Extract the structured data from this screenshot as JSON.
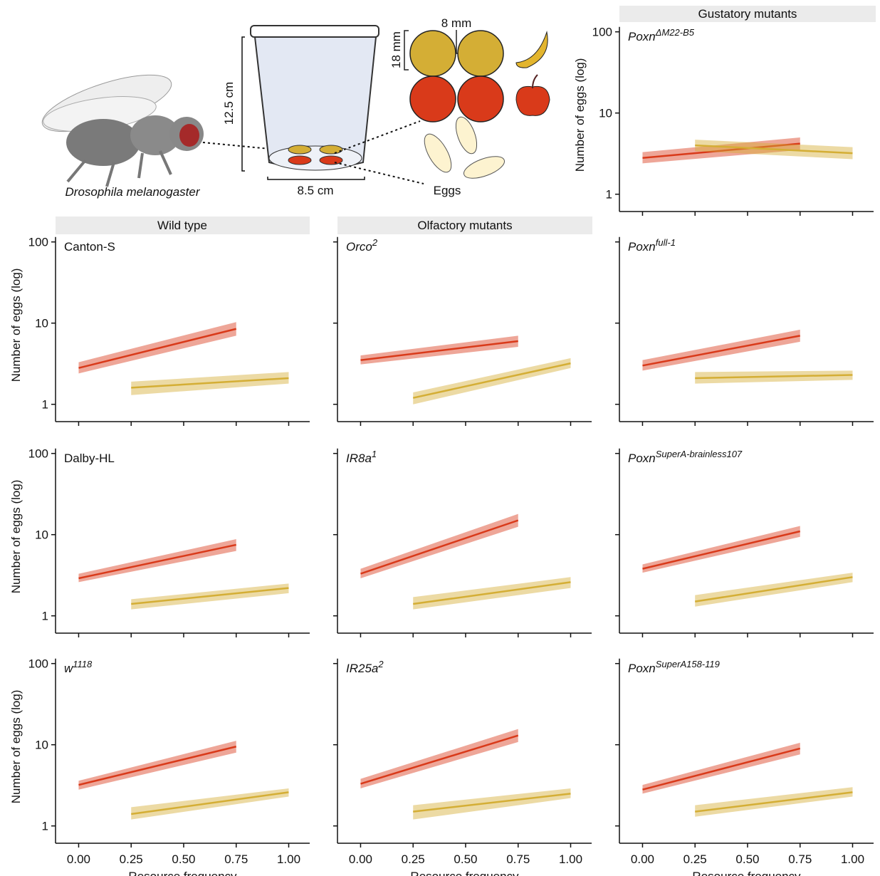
{
  "illustration": {
    "species": "Drosophila melanogaster",
    "height": "12.5 cm",
    "width": "8.5 cm",
    "gap": "8 mm",
    "diameter": "18 mm",
    "eggs": "Eggs"
  },
  "strips": [
    "Gustatory mutants",
    "Wild type",
    "Olfactory mutants"
  ],
  "chart_data": [
    {
      "type": "line",
      "title": "Poxn",
      "title_sup": "ΔM22-B5",
      "italic": true,
      "y_label": "Number of eggs (log)",
      "ytick_labels": true,
      "xtick_labels": false,
      "log_y": true,
      "xlim": [
        -0.11,
        1.1
      ],
      "ylim": [
        0.78,
        115
      ],
      "yticks": [
        1,
        10,
        100
      ],
      "xticks": [
        {
          "value": 0,
          "label": "0.00"
        },
        {
          "value": 0.25,
          "label": "0.25"
        },
        {
          "value": 0.5,
          "label": "0.50"
        },
        {
          "value": 0.75,
          "label": "0.75"
        },
        {
          "value": 1,
          "label": "1.00"
        }
      ],
      "series": [
        {
          "color": "#d93a1a",
          "x": [
            0,
            0.75
          ],
          "values": [
            2.8,
            4.2
          ],
          "lower": [
            2.4,
            3.5
          ],
          "upper": [
            3.3,
            5.0
          ]
        },
        {
          "color": "#d4ae35",
          "x": [
            0.25,
            1
          ],
          "values": [
            4.0,
            3.2
          ],
          "lower": [
            3.4,
            2.7
          ],
          "upper": [
            4.7,
            3.8
          ]
        }
      ]
    },
    {
      "type": "line",
      "title": "Canton-S",
      "italic": false,
      "y_label": "Number of eggs (log)",
      "ytick_labels": true,
      "xtick_labels": false,
      "log_y": true,
      "xlim": [
        -0.11,
        1.1
      ],
      "ylim": [
        0.78,
        115
      ],
      "yticks": [
        1,
        10,
        100
      ],
      "xticks": [
        {
          "value": 0,
          "label": "0.00"
        },
        {
          "value": 0.25,
          "label": "0.25"
        },
        {
          "value": 0.5,
          "label": "0.50"
        },
        {
          "value": 0.75,
          "label": "0.75"
        },
        {
          "value": 1,
          "label": "1.00"
        }
      ],
      "series": [
        {
          "color": "#d93a1a",
          "x": [
            0,
            0.75
          ],
          "values": [
            2.8,
            8.5
          ],
          "lower": [
            2.4,
            7.0
          ],
          "upper": [
            3.3,
            10.3
          ]
        },
        {
          "color": "#d4ae35",
          "x": [
            0.25,
            1
          ],
          "values": [
            1.6,
            2.1
          ],
          "lower": [
            1.3,
            1.8
          ],
          "upper": [
            1.9,
            2.5
          ]
        }
      ]
    },
    {
      "type": "line",
      "title": "Orco",
      "title_sup": "2",
      "italic": true,
      "ytick_labels": false,
      "xtick_labels": false,
      "log_y": true,
      "xlim": [
        -0.11,
        1.1
      ],
      "ylim": [
        0.78,
        115
      ],
      "yticks": [
        1,
        10,
        100
      ],
      "xticks": [
        {
          "value": 0,
          "label": "0.00"
        },
        {
          "value": 0.25,
          "label": "0.25"
        },
        {
          "value": 0.5,
          "label": "0.50"
        },
        {
          "value": 0.75,
          "label": "0.75"
        },
        {
          "value": 1,
          "label": "1.00"
        }
      ],
      "series": [
        {
          "color": "#d93a1a",
          "x": [
            0,
            0.75
          ],
          "values": [
            3.5,
            6.0
          ],
          "lower": [
            3.1,
            5.1
          ],
          "upper": [
            4.0,
            7.0
          ]
        },
        {
          "color": "#d4ae35",
          "x": [
            0.25,
            1
          ],
          "values": [
            1.2,
            3.2
          ],
          "lower": [
            1.0,
            2.8
          ],
          "upper": [
            1.4,
            3.7
          ]
        }
      ]
    },
    {
      "type": "line",
      "title": "Poxn",
      "title_sup": "full-1",
      "italic": true,
      "ytick_labels": false,
      "xtick_labels": false,
      "log_y": true,
      "xlim": [
        -0.11,
        1.1
      ],
      "ylim": [
        0.78,
        115
      ],
      "yticks": [
        1,
        10,
        100
      ],
      "xticks": [
        {
          "value": 0,
          "label": "0.00"
        },
        {
          "value": 0.25,
          "label": "0.25"
        },
        {
          "value": 0.5,
          "label": "0.50"
        },
        {
          "value": 0.75,
          "label": "0.75"
        },
        {
          "value": 1,
          "label": "1.00"
        }
      ],
      "series": [
        {
          "color": "#d93a1a",
          "x": [
            0,
            0.75
          ],
          "values": [
            3.0,
            7.0
          ],
          "lower": [
            2.6,
            5.9
          ],
          "upper": [
            3.5,
            8.3
          ]
        },
        {
          "color": "#d4ae35",
          "x": [
            0.25,
            1
          ],
          "values": [
            2.1,
            2.3
          ],
          "lower": [
            1.8,
            2.0
          ],
          "upper": [
            2.5,
            2.6
          ]
        }
      ]
    },
    {
      "type": "line",
      "title": "Dalby-HL",
      "italic": false,
      "y_label": "Number of eggs (log)",
      "ytick_labels": true,
      "xtick_labels": false,
      "log_y": true,
      "xlim": [
        -0.11,
        1.1
      ],
      "ylim": [
        0.78,
        115
      ],
      "yticks": [
        1,
        10,
        100
      ],
      "xticks": [
        {
          "value": 0,
          "label": "0.00"
        },
        {
          "value": 0.25,
          "label": "0.25"
        },
        {
          "value": 0.5,
          "label": "0.50"
        },
        {
          "value": 0.75,
          "label": "0.75"
        },
        {
          "value": 1,
          "label": "1.00"
        }
      ],
      "series": [
        {
          "color": "#d93a1a",
          "x": [
            0,
            0.75
          ],
          "values": [
            2.9,
            7.5
          ],
          "lower": [
            2.6,
            6.3
          ],
          "upper": [
            3.3,
            8.8
          ]
        },
        {
          "color": "#d4ae35",
          "x": [
            0.25,
            1
          ],
          "values": [
            1.4,
            2.2
          ],
          "lower": [
            1.2,
            1.9
          ],
          "upper": [
            1.6,
            2.5
          ]
        }
      ]
    },
    {
      "type": "line",
      "title": "IR8a",
      "title_sup": "1",
      "italic": true,
      "ytick_labels": false,
      "xtick_labels": false,
      "log_y": true,
      "xlim": [
        -0.11,
        1.1
      ],
      "ylim": [
        0.78,
        115
      ],
      "yticks": [
        1,
        10,
        100
      ],
      "xticks": [
        {
          "value": 0,
          "label": "0.00"
        },
        {
          "value": 0.25,
          "label": "0.25"
        },
        {
          "value": 0.5,
          "label": "0.50"
        },
        {
          "value": 0.75,
          "label": "0.75"
        },
        {
          "value": 1,
          "label": "1.00"
        }
      ],
      "series": [
        {
          "color": "#d93a1a",
          "x": [
            0,
            0.75
          ],
          "values": [
            3.3,
            15
          ],
          "lower": [
            2.9,
            12.5
          ],
          "upper": [
            3.8,
            18
          ]
        },
        {
          "color": "#d4ae35",
          "x": [
            0.25,
            1
          ],
          "values": [
            1.4,
            2.6
          ],
          "lower": [
            1.2,
            2.2
          ],
          "upper": [
            1.7,
            3.0
          ]
        }
      ]
    },
    {
      "type": "line",
      "title": "Poxn",
      "title_sup": "SuperA-brainless107",
      "italic": true,
      "ytick_labels": false,
      "xtick_labels": false,
      "log_y": true,
      "xlim": [
        -0.11,
        1.1
      ],
      "ylim": [
        0.78,
        115
      ],
      "yticks": [
        1,
        10,
        100
      ],
      "xticks": [
        {
          "value": 0,
          "label": "0.00"
        },
        {
          "value": 0.25,
          "label": "0.25"
        },
        {
          "value": 0.5,
          "label": "0.50"
        },
        {
          "value": 0.75,
          "label": "0.75"
        },
        {
          "value": 1,
          "label": "1.00"
        }
      ],
      "series": [
        {
          "color": "#d93a1a",
          "x": [
            0,
            0.75
          ],
          "values": [
            3.8,
            11
          ],
          "lower": [
            3.4,
            9.4
          ],
          "upper": [
            4.3,
            12.8
          ]
        },
        {
          "color": "#d4ae35",
          "x": [
            0.25,
            1
          ],
          "values": [
            1.5,
            3.0
          ],
          "lower": [
            1.3,
            2.6
          ],
          "upper": [
            1.8,
            3.4
          ]
        }
      ]
    },
    {
      "type": "line",
      "title": "w",
      "title_sup": "1118",
      "italic": true,
      "y_label": "Number of eggs (log)",
      "x_label": "Resource frequency",
      "ytick_labels": true,
      "xtick_labels": true,
      "log_y": true,
      "xlim": [
        -0.11,
        1.1
      ],
      "ylim": [
        0.78,
        115
      ],
      "yticks": [
        1,
        10,
        100
      ],
      "xticks": [
        {
          "value": 0,
          "label": "0.00"
        },
        {
          "value": 0.25,
          "label": "0.25"
        },
        {
          "value": 0.5,
          "label": "0.50"
        },
        {
          "value": 0.75,
          "label": "0.75"
        },
        {
          "value": 1,
          "label": "1.00"
        }
      ],
      "series": [
        {
          "color": "#d93a1a",
          "x": [
            0,
            0.75
          ],
          "values": [
            3.2,
            9.5
          ],
          "lower": [
            2.8,
            8.0
          ],
          "upper": [
            3.6,
            11.2
          ]
        },
        {
          "color": "#d4ae35",
          "x": [
            0.25,
            1
          ],
          "values": [
            1.4,
            2.6
          ],
          "lower": [
            1.2,
            2.3
          ],
          "upper": [
            1.7,
            2.9
          ]
        }
      ]
    },
    {
      "type": "line",
      "title": "IR25a",
      "title_sup": "2",
      "italic": true,
      "x_label": "Resource frequency",
      "ytick_labels": false,
      "xtick_labels": true,
      "log_y": true,
      "xlim": [
        -0.11,
        1.1
      ],
      "ylim": [
        0.78,
        115
      ],
      "yticks": [
        1,
        10,
        100
      ],
      "xticks": [
        {
          "value": 0,
          "label": "0.00"
        },
        {
          "value": 0.25,
          "label": "0.25"
        },
        {
          "value": 0.5,
          "label": "0.50"
        },
        {
          "value": 0.75,
          "label": "0.75"
        },
        {
          "value": 1,
          "label": "1.00"
        }
      ],
      "series": [
        {
          "color": "#d93a1a",
          "x": [
            0,
            0.75
          ],
          "values": [
            3.3,
            13
          ],
          "lower": [
            2.9,
            10.8
          ],
          "upper": [
            3.8,
            15.6
          ]
        },
        {
          "color": "#d4ae35",
          "x": [
            0.25,
            1
          ],
          "values": [
            1.5,
            2.5
          ],
          "lower": [
            1.2,
            2.2
          ],
          "upper": [
            1.8,
            2.9
          ]
        }
      ]
    },
    {
      "type": "line",
      "title": "Poxn",
      "title_sup": "SuperA158-119",
      "italic": true,
      "x_label": "Resource frequency",
      "ytick_labels": false,
      "xtick_labels": true,
      "log_y": true,
      "xlim": [
        -0.11,
        1.1
      ],
      "ylim": [
        0.78,
        115
      ],
      "yticks": [
        1,
        10,
        100
      ],
      "xticks": [
        {
          "value": 0,
          "label": "0.00"
        },
        {
          "value": 0.25,
          "label": "0.25"
        },
        {
          "value": 0.5,
          "label": "0.50"
        },
        {
          "value": 0.75,
          "label": "0.75"
        },
        {
          "value": 1,
          "label": "1.00"
        }
      ],
      "series": [
        {
          "color": "#d93a1a",
          "x": [
            0,
            0.75
          ],
          "values": [
            2.8,
            9.0
          ],
          "lower": [
            2.5,
            7.6
          ],
          "upper": [
            3.2,
            10.6
          ]
        },
        {
          "color": "#d4ae35",
          "x": [
            0.25,
            1
          ],
          "values": [
            1.5,
            2.6
          ],
          "lower": [
            1.3,
            2.3
          ],
          "upper": [
            1.8,
            3.0
          ]
        }
      ]
    }
  ]
}
